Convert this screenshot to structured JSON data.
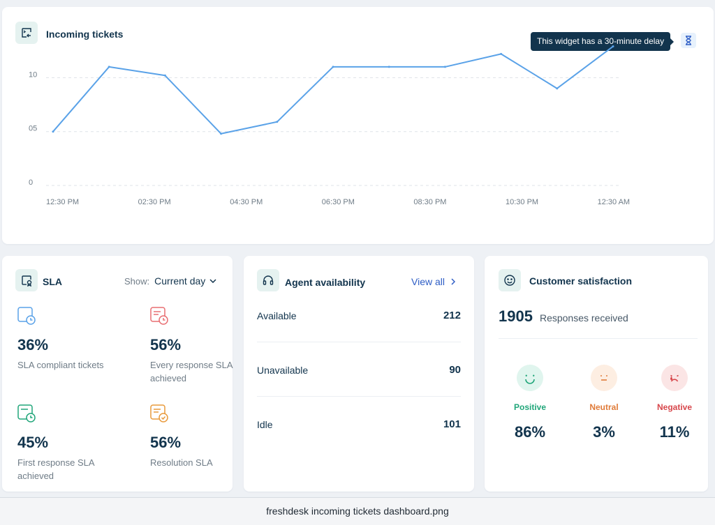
{
  "incoming_tickets": {
    "title": "Incoming tickets",
    "icon": "ticket-icon",
    "tooltip": "This widget has a 30-minute delay",
    "delay_icon": "hourglass-icon",
    "chart_data": {
      "type": "line",
      "title": "",
      "xlabel": "",
      "ylabel": "",
      "x_tick_labels": [
        "12:30 PM",
        "02:30 PM",
        "04:30 PM",
        "06:30 PM",
        "08:30 PM",
        "10:30 PM",
        "12:30 AM"
      ],
      "y_tick_labels": [
        "0",
        "05",
        "10"
      ],
      "y_ticks": [
        0,
        5,
        10
      ],
      "ylim": [
        0,
        13
      ],
      "grid": "dashed horizontal",
      "color": "#5aa2e8",
      "series": [
        {
          "values": [
            5,
            11,
            10.2,
            4.8,
            5.9,
            11,
            11,
            11,
            12.2,
            9,
            12.9
          ]
        }
      ]
    }
  },
  "sla": {
    "title": "SLA",
    "icon": "sla-badge-icon",
    "show_label": "Show:",
    "show_value": "Current day",
    "metrics": [
      {
        "value": "36%",
        "label": "SLA compliant tickets",
        "color": "#5aa2e8",
        "icon": "sla-compliant-icon"
      },
      {
        "value": "56%",
        "label": "Every response SLA achieved",
        "color": "#e86e72",
        "icon": "every-response-icon"
      },
      {
        "value": "45%",
        "label": "First response SLA achieved",
        "color": "#21a67a",
        "icon": "first-response-icon"
      },
      {
        "value": "56%",
        "label": "Resolution SLA",
        "color": "#e89a3c",
        "icon": "resolution-icon"
      }
    ]
  },
  "agent_availability": {
    "title": "Agent availability",
    "icon": "headset-icon",
    "view_all": "View all",
    "rows": [
      {
        "label": "Available",
        "count": "212"
      },
      {
        "label": "Unavailable",
        "count": "90"
      },
      {
        "label": "Idle",
        "count": "101"
      }
    ]
  },
  "customer_satisfaction": {
    "title": "Customer satisfaction",
    "icon": "smiley-icon",
    "responses_count": "1905",
    "responses_label": "Responses received",
    "ratings": [
      {
        "label": "Positive",
        "percent": "86%",
        "color": "#21a67a",
        "bg": "#e0f5ee"
      },
      {
        "label": "Neutral",
        "percent": "3%",
        "color": "#e07b39",
        "bg": "#fdeee2"
      },
      {
        "label": "Negative",
        "percent": "11%",
        "color": "#d7464b",
        "bg": "#fbe5e5"
      }
    ]
  },
  "caption": "freshdesk incoming tickets dashboard.png"
}
